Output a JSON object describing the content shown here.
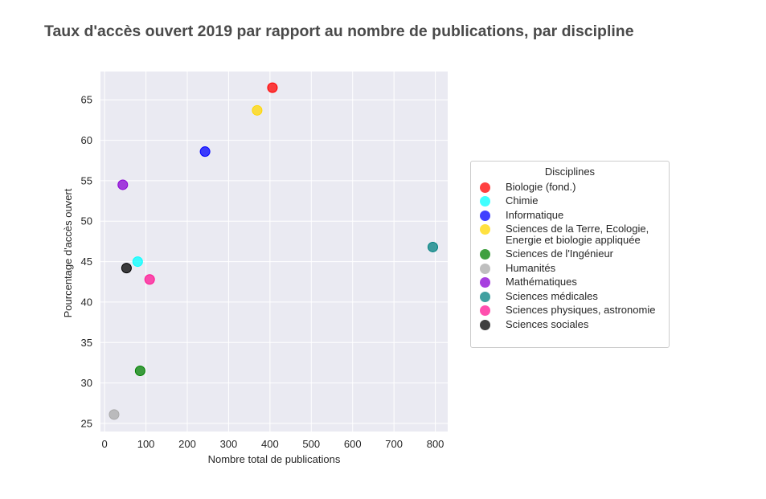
{
  "chart_data": {
    "type": "scatter",
    "title": "Taux d'accès ouvert 2019 par rapport au nombre de publications, par discipline",
    "xlabel": "Nombre total de publications",
    "ylabel": "Pourcentage d'accès ouvert",
    "xlim": [
      -10,
      830
    ],
    "ylim": [
      24,
      68.5
    ],
    "xticks": [
      0,
      100,
      200,
      300,
      400,
      500,
      600,
      700,
      800
    ],
    "yticks": [
      25,
      30,
      35,
      40,
      45,
      50,
      55,
      60,
      65
    ],
    "grid": true,
    "legend_title": "Disciplines",
    "legend_position": "right",
    "series": [
      {
        "name": "Biologie (fond.)",
        "color": "#ff0000",
        "x": 406,
        "y": 66.5
      },
      {
        "name": "Chimie",
        "color": "#00ffff",
        "x": 80,
        "y": 45.0
      },
      {
        "name": "Informatique",
        "color": "#0000ff",
        "x": 243,
        "y": 58.6
      },
      {
        "name": "Sciences de la Terre, Ecologie,\nEnergie et biologie appliquée",
        "color": "#ffd700",
        "x": 369,
        "y": 63.7
      },
      {
        "name": "Sciences de l'Ingénieur",
        "color": "#008000",
        "x": 86,
        "y": 31.5
      },
      {
        "name": "Humanités",
        "color": "#a9a9a9",
        "x": 23,
        "y": 26.1
      },
      {
        "name": "Mathématiques",
        "color": "#8a00d4",
        "x": 44,
        "y": 54.5
      },
      {
        "name": "Sciences médicales",
        "color": "#008080",
        "x": 794,
        "y": 46.8
      },
      {
        "name": "Sciences physiques, astronomie",
        "color": "#ff1493",
        "x": 109,
        "y": 42.8
      },
      {
        "name": "Sciences sociales",
        "color": "#000000",
        "x": 53,
        "y": 44.2
      }
    ]
  }
}
